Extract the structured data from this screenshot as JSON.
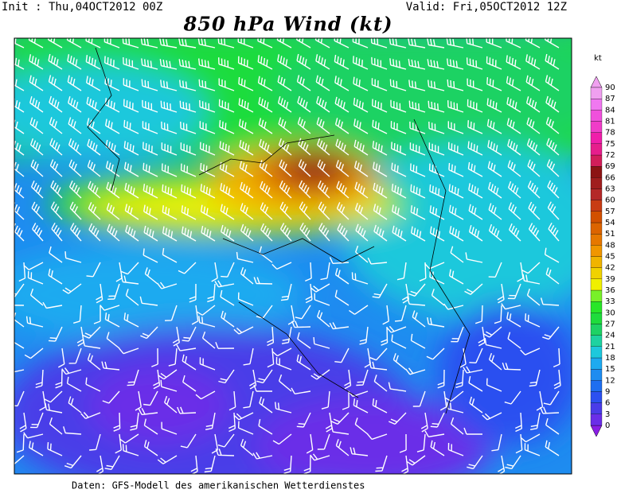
{
  "header": {
    "init": "Init : Thu,04OCT2012 00Z",
    "valid": "Valid: Fri,05OCT2012 12Z",
    "title": "850 hPa Wind (kt)"
  },
  "colorbar": {
    "unit": "kt",
    "levels": [
      0,
      3,
      6,
      9,
      12,
      15,
      18,
      21,
      24,
      27,
      30,
      33,
      36,
      39,
      42,
      45,
      48,
      51,
      54,
      57,
      60,
      63,
      66,
      69,
      72,
      75,
      78,
      81,
      84,
      87,
      90
    ],
    "colors": [
      "#8a1ee6",
      "#6a2ee8",
      "#4a3ce8",
      "#2c50f0",
      "#1e6ef0",
      "#1e8cf0",
      "#1eaaf0",
      "#1ec8dc",
      "#1ed2a0",
      "#1ed264",
      "#1edc3c",
      "#28e628",
      "#78f028",
      "#f0f000",
      "#f0d200",
      "#f0b400",
      "#f09600",
      "#e67800",
      "#dc6400",
      "#d25000",
      "#c83c14",
      "#b42828",
      "#a01e1e",
      "#8c1414",
      "#d21e5a",
      "#e61e8c",
      "#f01eaa",
      "#f03cc8",
      "#f050dc",
      "#f078f0",
      "#f0a0f0"
    ]
  },
  "footer": "Daten: GFS-Modell des amerikanischen Wetterdienstes"
}
